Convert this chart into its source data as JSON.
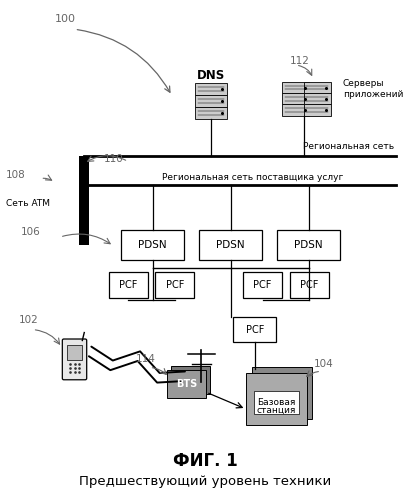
{
  "title": "ФИГ. 1",
  "subtitle": "Предшествующий уровень техники",
  "background_color": "#ffffff",
  "regional_net_label": "Региональная сеть",
  "provider_net_label": "Региональная сеть поставщика услуг",
  "atm_net_label": "Сеть ATM",
  "app_servers_label": "Серверы\nприложений",
  "base_station_label1": "Базовая",
  "base_station_label2": "станция",
  "label_100": "100",
  "label_110": "110",
  "label_108": "108",
  "label_106": "106",
  "label_102": "102",
  "label_114": "114",
  "label_104": "104",
  "label_112": "112",
  "label_DNS": "DNS",
  "label_PDSN": "PDSN",
  "label_PCF": "PCF",
  "label_BTS": "BTS",
  "text_color": "#666666",
  "line_color": "#000000",
  "box_edge": "#000000",
  "box_face": "#ffffff",
  "server_face": "#cccccc",
  "bts_face": "#888888",
  "bs_face": "#aaaaaa"
}
